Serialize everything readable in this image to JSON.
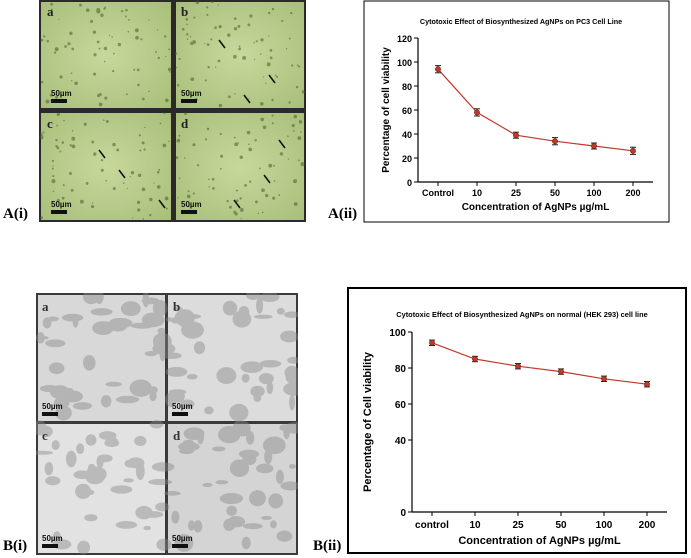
{
  "figure": {
    "panels": [
      {
        "id": "Ai",
        "label": "A(i)"
      },
      {
        "id": "Aii",
        "label": "A(ii)"
      },
      {
        "id": "Bi",
        "label": "B(i)"
      },
      {
        "id": "Bii",
        "label": "B(ii)"
      }
    ],
    "micrograph_A": {
      "sub_labels": [
        "a",
        "b",
        "c",
        "d"
      ],
      "scale_bar_text": "50µm",
      "tint": "#b9cc8e"
    },
    "micrograph_B": {
      "sub_labels": [
        "a",
        "b",
        "c",
        "d"
      ],
      "scale_bar_text": "50µm",
      "tint": "#c9c9c9"
    }
  },
  "chart_data": [
    {
      "type": "line",
      "title": "Cytotoxic Effect of Biosynthesized AgNPs on PC3 Cell Line",
      "xlabel": "Concentration of AgNPs µg/mL",
      "ylabel": "Percentage of cell viability",
      "categories": [
        "Control",
        "10",
        "25",
        "50",
        "100",
        "200"
      ],
      "series": [
        {
          "values": [
            94,
            58,
            39,
            34,
            30,
            26
          ],
          "errors": [
            3,
            3,
            2.5,
            3,
            2.5,
            3
          ],
          "color": "#c0392b"
        }
      ],
      "ylim": [
        0,
        120
      ],
      "yticks": [
        0,
        20,
        40,
        60,
        80,
        100,
        120
      ],
      "grid": false,
      "legend": "none"
    },
    {
      "type": "line",
      "title": "Cytotoxic Effect of Biosynthesized AgNPs on normal (HEK 293) cell line",
      "xlabel": "Concentration of AgNPs µg/mL",
      "ylabel": "Percentage of Cell viability",
      "categories": [
        "control",
        "10",
        "25",
        "50",
        "100",
        "200"
      ],
      "series": [
        {
          "values": [
            94,
            85,
            81,
            78,
            74,
            71
          ],
          "errors": [
            1.5,
            1.5,
            1.5,
            1.5,
            1.5,
            1.5
          ],
          "color": "#c0392b"
        }
      ],
      "ylim": [
        0,
        100
      ],
      "yticks": [
        0,
        40,
        60,
        80,
        100
      ],
      "grid": false,
      "legend": "none"
    }
  ]
}
